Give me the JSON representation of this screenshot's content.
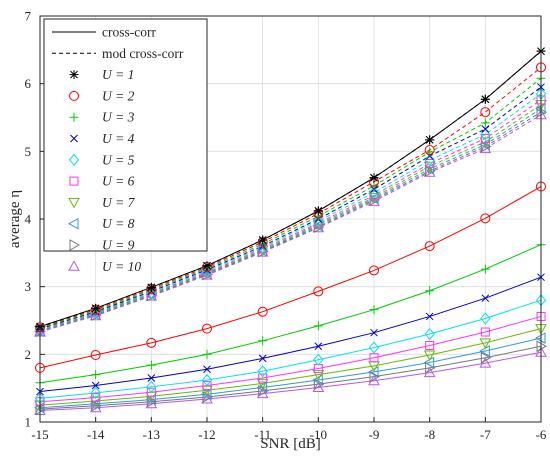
{
  "chart_data": {
    "type": "line",
    "title": "",
    "xlabel": "SNR [dB]",
    "ylabel": "average η",
    "xlim": [
      -15,
      -6
    ],
    "ylim": [
      1,
      7
    ],
    "xticks": [
      -15,
      -14,
      -13,
      -12,
      -11,
      -10,
      -9,
      -8,
      -7,
      -6
    ],
    "yticks": [
      1,
      2,
      3,
      4,
      5,
      6,
      7
    ],
    "grid": true,
    "legend_position": "top-left",
    "legend_styles": [
      {
        "label": "cross-corr",
        "style": "solid"
      },
      {
        "label": "mod cross-corr",
        "style": "dashed"
      }
    ],
    "x": [
      -15,
      -14,
      -13,
      -12,
      -11,
      -10,
      -9,
      -8,
      -7,
      -6
    ],
    "series": [
      {
        "name": "U = 1",
        "u": "1",
        "color": "#000000",
        "marker": "star",
        "values": [
          2.41,
          2.68,
          2.99,
          3.31,
          3.69,
          4.12,
          4.61,
          5.17,
          5.77,
          6.48
        ],
        "mod_values": [
          2.41,
          2.68,
          2.99,
          3.31,
          3.69,
          4.12,
          4.61,
          5.17,
          5.77,
          6.48
        ]
      },
      {
        "name": "U = 2",
        "u": "2",
        "color": "#ff0000",
        "marker": "circle",
        "values": [
          1.8,
          1.99,
          2.17,
          2.38,
          2.63,
          2.93,
          3.24,
          3.6,
          4.01,
          4.48
        ],
        "mod_values": [
          2.4,
          2.66,
          2.97,
          3.29,
          3.66,
          4.08,
          4.55,
          5.02,
          5.58,
          6.24
        ]
      },
      {
        "name": "U = 3",
        "u": "3",
        "color": "#00cc00",
        "marker": "plus",
        "values": [
          1.58,
          1.7,
          1.84,
          2.0,
          2.2,
          2.42,
          2.66,
          2.94,
          3.26,
          3.62
        ],
        "mod_values": [
          2.39,
          2.64,
          2.95,
          3.27,
          3.63,
          4.04,
          4.49,
          4.99,
          5.42,
          6.08
        ]
      },
      {
        "name": "U = 4",
        "u": "4",
        "color": "#0000cc",
        "marker": "x",
        "values": [
          1.45,
          1.54,
          1.65,
          1.78,
          1.94,
          2.12,
          2.32,
          2.56,
          2.83,
          3.14
        ],
        "mod_values": [
          2.38,
          2.63,
          2.93,
          3.25,
          3.6,
          4.0,
          4.44,
          4.93,
          5.33,
          5.95
        ]
      },
      {
        "name": "U = 5",
        "u": "5",
        "color": "#00e5e5",
        "marker": "diamond",
        "values": [
          1.35,
          1.43,
          1.52,
          1.62,
          1.75,
          1.92,
          2.1,
          2.3,
          2.53,
          2.8
        ],
        "mod_values": [
          2.37,
          2.62,
          2.91,
          3.23,
          3.58,
          3.97,
          4.39,
          4.87,
          5.25,
          5.85
        ]
      },
      {
        "name": "U = 6",
        "u": "6",
        "color": "#ff33ff",
        "marker": "square",
        "values": [
          1.3,
          1.36,
          1.44,
          1.54,
          1.65,
          1.79,
          1.95,
          2.13,
          2.33,
          2.56
        ],
        "mod_values": [
          2.36,
          2.61,
          2.9,
          3.21,
          3.56,
          3.94,
          4.35,
          4.82,
          5.19,
          5.76
        ]
      },
      {
        "name": "U = 7",
        "u": "7",
        "color": "#66bb00",
        "marker": "triangle-down",
        "values": [
          1.25,
          1.31,
          1.38,
          1.47,
          1.57,
          1.7,
          1.83,
          1.99,
          2.17,
          2.38
        ],
        "mod_values": [
          2.35,
          2.6,
          2.89,
          3.2,
          3.54,
          3.92,
          4.32,
          4.78,
          5.14,
          5.69
        ]
      },
      {
        "name": "U = 8",
        "u": "8",
        "color": "#3399dd",
        "marker": "triangle-left",
        "values": [
          1.21,
          1.27,
          1.33,
          1.41,
          1.51,
          1.62,
          1.74,
          1.88,
          2.05,
          2.24
        ],
        "mod_values": [
          2.34,
          2.59,
          2.88,
          3.19,
          3.53,
          3.9,
          4.3,
          4.74,
          5.1,
          5.63
        ]
      },
      {
        "name": "U = 9",
        "u": "9",
        "color": "#777777",
        "marker": "triangle-right",
        "values": [
          1.19,
          1.24,
          1.3,
          1.37,
          1.46,
          1.56,
          1.67,
          1.8,
          1.95,
          2.12
        ],
        "mod_values": [
          2.34,
          2.58,
          2.87,
          3.18,
          3.52,
          3.88,
          4.28,
          4.71,
          5.07,
          5.58
        ]
      },
      {
        "name": "U = 10",
        "u": "10",
        "color": "#bb55ee",
        "marker": "triangle-up",
        "values": [
          1.17,
          1.21,
          1.27,
          1.34,
          1.42,
          1.51,
          1.61,
          1.73,
          1.87,
          2.03
        ],
        "mod_values": [
          2.33,
          2.57,
          2.86,
          3.17,
          3.51,
          3.87,
          4.26,
          4.69,
          5.04,
          5.54
        ]
      }
    ]
  }
}
